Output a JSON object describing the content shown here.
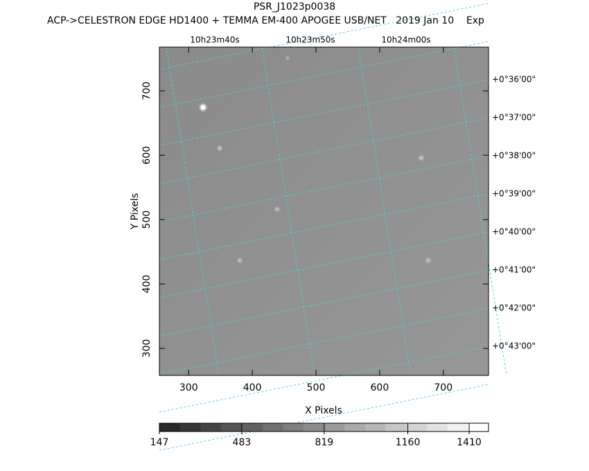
{
  "chart_data": {
    "type": "image",
    "title": "PSR_J1023p0038",
    "subtitle": "ACP->CELESTRON EDGE HD1400 + TEMMA EM-400 APOGEE USB/NET   2019 Jan 10    Exp",
    "x_label": "X Pixels",
    "y_label": "Y Pixels",
    "xlim": [
      254,
      771
    ],
    "xticks": [
      300,
      400,
      500,
      600,
      700
    ],
    "ylim": [
      258,
      768
    ],
    "yticks": [
      300,
      400,
      500,
      600,
      700
    ],
    "ra_labels": [
      "10h23m40s",
      "10h23m50s",
      "10h24m00s"
    ],
    "dec_labels": [
      "+0°36'00\"",
      "+0°37'00\"",
      "+0°38'00\"",
      "+0°39'00\"",
      "+0°40'00\"",
      "+0°41'00\"",
      "+0°42'00\"",
      "+0°43'00\""
    ],
    "colorbar": {
      "clim": [
        147,
        1489
      ],
      "ticks": [
        147,
        483,
        819,
        1160,
        1410
      ]
    }
  }
}
